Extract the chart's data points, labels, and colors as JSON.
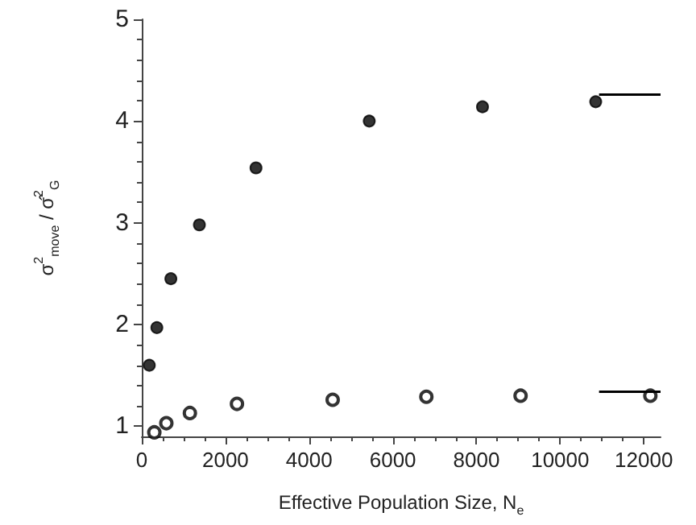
{
  "chart_data": {
    "type": "scatter",
    "xlabel": "Effective Population Size, N$_{e}$",
    "ylabel": "σ$^{2}$$_{move}$ / σ̂$^{2}$$_{G}$",
    "xlim": [
      0,
      12400
    ],
    "ylim": [
      0.9,
      5
    ],
    "xticks": [
      0,
      2000,
      4000,
      6000,
      8000,
      10000,
      12000
    ],
    "yticks": [
      1,
      2,
      3,
      4,
      5
    ],
    "grid": false,
    "marker": "circle",
    "series": [
      {
        "color": "#000000",
        "x": [
          180,
          360,
          695,
          1377,
          2730,
          5437,
          8144,
          10850
        ],
        "values": [
          1.6,
          1.97,
          2.45,
          2.98,
          3.54,
          4.0,
          4.14,
          4.19
        ]
      },
      {
        "color": "#000000",
        "marker": "circle_open",
        "x": [
          300,
          587,
          1150,
          2275,
          4563,
          6802,
          9054,
          12156
        ],
        "values": [
          0.94,
          1.03,
          1.13,
          1.22,
          1.26,
          1.29,
          1.3,
          1.3
        ]
      },
      {
        "type": "line",
        "color": "#000000",
        "marker": "none",
        "line_style": "solid",
        "x": [
          10930,
          12400
        ],
        "values": [
          4.26,
          4.26
        ]
      },
      {
        "type": "line",
        "color": "#000000",
        "marker": "none",
        "line_style": "solid",
        "x": [
          10930,
          12400
        ],
        "values": [
          1.34,
          1.34
        ]
      }
    ]
  }
}
